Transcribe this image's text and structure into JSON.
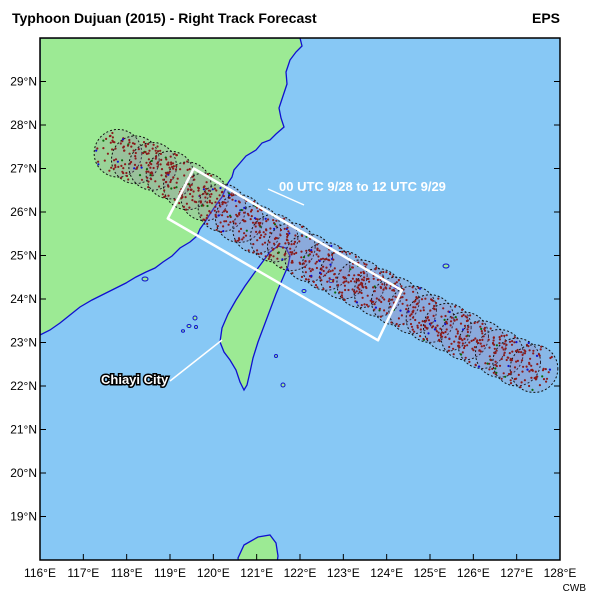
{
  "header": {
    "title": "Typhoon Dujuan (2015) - Right Track Forecast",
    "model": "EPS"
  },
  "footer": {
    "credit": "CWB"
  },
  "map": {
    "lon_range": [
      116,
      128
    ],
    "lat_range": [
      18,
      30
    ],
    "lon_ticks": [
      "116°E",
      "117°E",
      "118°E",
      "119°E",
      "120°E",
      "121°E",
      "122°E",
      "123°E",
      "124°E",
      "125°E",
      "126°E",
      "127°E",
      "128°E"
    ],
    "lat_ticks": [
      "19°N",
      "20°N",
      "21°N",
      "22°N",
      "23°N",
      "24°N",
      "25°N",
      "26°N",
      "27°N",
      "28°N",
      "29°N"
    ],
    "colors": {
      "ocean": "#87c8f5",
      "land": "#9cea94",
      "coastline": "#1010d0",
      "member_points": "#8b1a1a",
      "track_box": "#ffffff"
    }
  },
  "annotations": {
    "time_window": "00 UTC 9/28 to 12 UTC 9/29",
    "city": "Chiayi City"
  },
  "forecast": {
    "uncertainty_circle_centers": [
      {
        "lon": 117.8,
        "lat": 27.35
      },
      {
        "lon": 118.2,
        "lat": 27.2
      },
      {
        "lon": 118.6,
        "lat": 27.05
      },
      {
        "lon": 119.0,
        "lat": 26.85
      },
      {
        "lon": 119.4,
        "lat": 26.6
      },
      {
        "lon": 119.8,
        "lat": 26.35
      },
      {
        "lon": 120.2,
        "lat": 26.1
      },
      {
        "lon": 120.6,
        "lat": 25.85
      },
      {
        "lon": 121.0,
        "lat": 25.6
      },
      {
        "lon": 121.4,
        "lat": 25.4
      },
      {
        "lon": 121.8,
        "lat": 25.2
      },
      {
        "lon": 122.2,
        "lat": 24.95
      },
      {
        "lon": 122.6,
        "lat": 24.75
      },
      {
        "lon": 123.0,
        "lat": 24.55
      },
      {
        "lon": 123.4,
        "lat": 24.35
      },
      {
        "lon": 123.8,
        "lat": 24.15
      },
      {
        "lon": 124.2,
        "lat": 23.95
      },
      {
        "lon": 124.6,
        "lat": 23.75
      },
      {
        "lon": 125.0,
        "lat": 23.55
      },
      {
        "lon": 125.4,
        "lat": 23.35
      },
      {
        "lon": 125.8,
        "lat": 23.15
      },
      {
        "lon": 126.2,
        "lat": 22.95
      },
      {
        "lon": 126.6,
        "lat": 22.75
      },
      {
        "lon": 127.0,
        "lat": 22.55
      },
      {
        "lon": 127.4,
        "lat": 22.4
      }
    ],
    "circle_radius_deg": 0.55,
    "time_window_box": [
      {
        "lon": 119.55,
        "lat": 27.0
      },
      {
        "lon": 124.35,
        "lat": 24.2
      },
      {
        "lon": 123.8,
        "lat": 23.05
      },
      {
        "lon": 118.95,
        "lat": 25.85
      }
    ]
  }
}
